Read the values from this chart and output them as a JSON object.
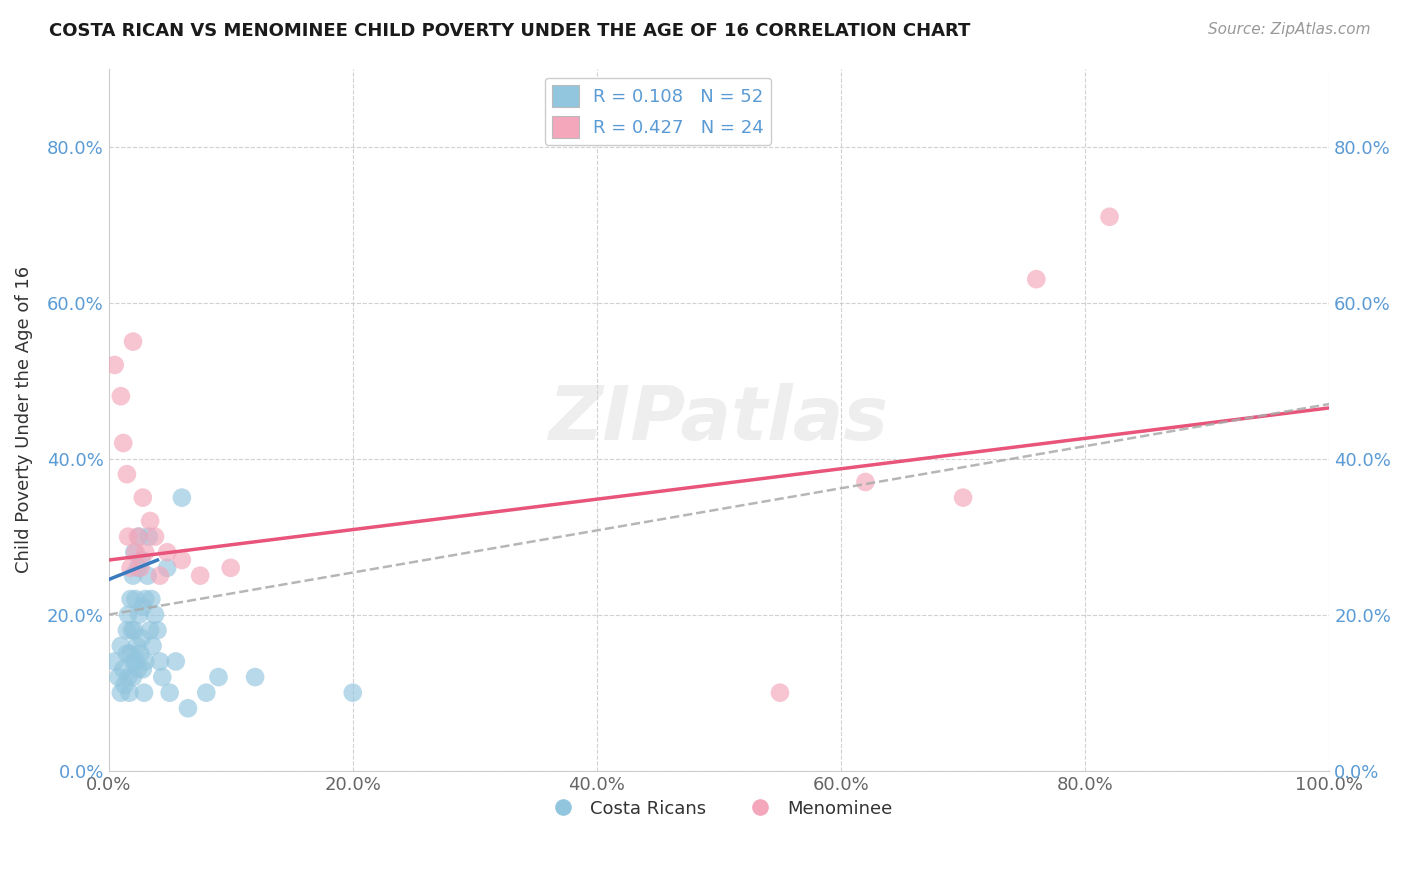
{
  "title": "COSTA RICAN VS MENOMINEE CHILD POVERTY UNDER THE AGE OF 16 CORRELATION CHART",
  "source": "Source: ZipAtlas.com",
  "ylabel": "Child Poverty Under the Age of 16",
  "xlim": [
    0.0,
    1.0
  ],
  "ylim": [
    0.0,
    0.9
  ],
  "xticks": [
    0.0,
    0.2,
    0.4,
    0.6,
    0.8,
    1.0
  ],
  "xtick_labels": [
    "0.0%",
    "20.0%",
    "40.0%",
    "60.0%",
    "80.0%",
    "100.0%"
  ],
  "yticks": [
    0.0,
    0.2,
    0.4,
    0.6,
    0.8
  ],
  "ytick_labels": [
    "0.0%",
    "20.0%",
    "40.0%",
    "60.0%",
    "80.0%"
  ],
  "legend1_r": "0.108",
  "legend1_n": "52",
  "legend2_r": "0.427",
  "legend2_n": "24",
  "legend_bottom_label1": "Costa Ricans",
  "legend_bottom_label2": "Menominee",
  "blue_color": "#92c5de",
  "pink_color": "#f4a6ba",
  "blue_line_color": "#3a7abf",
  "pink_line_color": "#e8547a",
  "dash_line_color": "#aaaaaa",
  "grid_color": "#cccccc",
  "title_color": "#1a1a1a",
  "tick_color_y": "#5b9bd5",
  "tick_color_x": "#666666",
  "blue_x": [
    0.005,
    0.008,
    0.01,
    0.01,
    0.012,
    0.013,
    0.015,
    0.015,
    0.016,
    0.016,
    0.017,
    0.018,
    0.018,
    0.019,
    0.02,
    0.02,
    0.02,
    0.021,
    0.021,
    0.022,
    0.022,
    0.023,
    0.024,
    0.024,
    0.025,
    0.025,
    0.026,
    0.027,
    0.027,
    0.028,
    0.028,
    0.029,
    0.03,
    0.03,
    0.032,
    0.033,
    0.034,
    0.035,
    0.036,
    0.038,
    0.04,
    0.042,
    0.044,
    0.048,
    0.05,
    0.055,
    0.06,
    0.065,
    0.08,
    0.09,
    0.12,
    0.2
  ],
  "blue_y": [
    0.14,
    0.12,
    0.1,
    0.16,
    0.13,
    0.11,
    0.15,
    0.18,
    0.12,
    0.2,
    0.1,
    0.15,
    0.22,
    0.18,
    0.12,
    0.14,
    0.25,
    0.18,
    0.28,
    0.14,
    0.22,
    0.16,
    0.13,
    0.26,
    0.2,
    0.3,
    0.15,
    0.17,
    0.27,
    0.13,
    0.21,
    0.1,
    0.14,
    0.22,
    0.25,
    0.3,
    0.18,
    0.22,
    0.16,
    0.2,
    0.18,
    0.14,
    0.12,
    0.26,
    0.1,
    0.14,
    0.35,
    0.08,
    0.1,
    0.12,
    0.12,
    0.1
  ],
  "pink_x": [
    0.005,
    0.01,
    0.012,
    0.015,
    0.016,
    0.018,
    0.02,
    0.022,
    0.024,
    0.026,
    0.028,
    0.03,
    0.034,
    0.038,
    0.042,
    0.048,
    0.06,
    0.075,
    0.1,
    0.55,
    0.62,
    0.7,
    0.76,
    0.82
  ],
  "pink_y": [
    0.52,
    0.48,
    0.42,
    0.38,
    0.3,
    0.26,
    0.55,
    0.28,
    0.3,
    0.26,
    0.35,
    0.28,
    0.32,
    0.3,
    0.25,
    0.28,
    0.27,
    0.25,
    0.26,
    0.1,
    0.37,
    0.35,
    0.63,
    0.71
  ],
  "blue_trend_x": [
    0.0,
    0.04
  ],
  "blue_trend_y": [
    0.245,
    0.27
  ],
  "pink_trend_x": [
    0.0,
    1.0
  ],
  "pink_trend_y": [
    0.27,
    0.465
  ],
  "dash_trend_x": [
    0.0,
    1.0
  ],
  "dash_trend_y": [
    0.2,
    0.47
  ]
}
